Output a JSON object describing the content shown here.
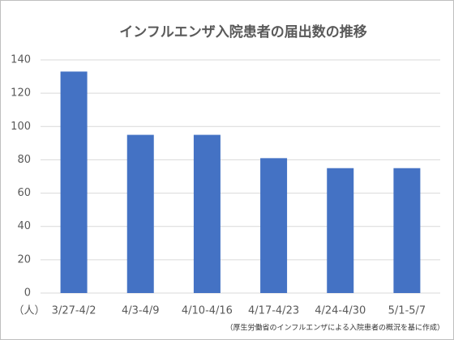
{
  "chart_data": {
    "type": "bar",
    "title": "インフルエンザ入院患者の届出数の推移",
    "unit": "（人）",
    "note": "（厚生労働省のインフルエンザによる入院患者の概況を基に作成）",
    "categories": [
      "3/27-4/2",
      "4/3-4/9",
      "4/10-4/16",
      "4/17-4/23",
      "4/24-4/30",
      "5/1-5/7"
    ],
    "values": [
      133,
      95,
      95,
      81,
      75,
      75
    ],
    "color": "#4472c4",
    "ylim": [
      0,
      140
    ],
    "yticks": [
      0,
      20,
      40,
      60,
      80,
      100,
      120,
      140
    ],
    "grid": true
  }
}
